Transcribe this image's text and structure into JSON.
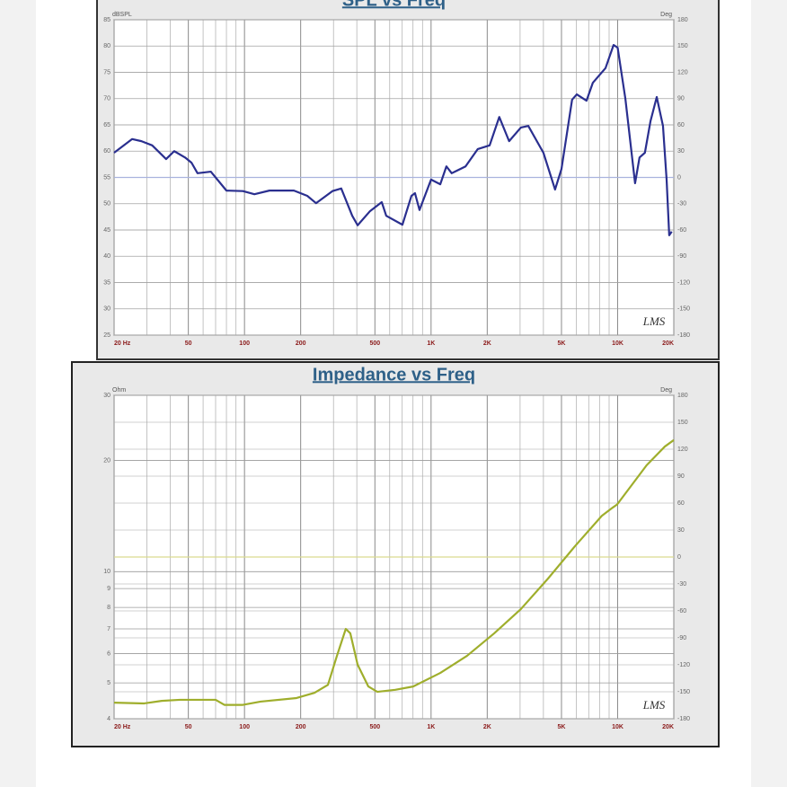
{
  "chart_data": [
    {
      "type": "line",
      "title": "SPL vs Freq",
      "y_label": "dBSPL",
      "y2_label": "Deg",
      "watermark": "LMS",
      "x_log": true,
      "y_log": false,
      "grid": true,
      "xlim": [
        20,
        20000
      ],
      "xticks": [
        {
          "value": 20,
          "label": "20 Hz"
        },
        50,
        100,
        200,
        500,
        {
          "value": 1000,
          "label": "1K"
        },
        {
          "value": 2000,
          "label": "2K"
        },
        {
          "value": 5000,
          "label": "5K"
        },
        {
          "value": 10000,
          "label": "10K"
        },
        {
          "value": 20000,
          "label": "20K"
        }
      ],
      "xminorticks": [
        30,
        40,
        60,
        70,
        80,
        90,
        300,
        400,
        600,
        700,
        800,
        900,
        3000,
        4000,
        6000,
        7000,
        8000,
        9000
      ],
      "ylim": [
        25,
        85
      ],
      "yticks": [
        25,
        30,
        35,
        40,
        45,
        50,
        55,
        60,
        65,
        70,
        75,
        80,
        85
      ],
      "y2lim": [
        -180,
        180
      ],
      "y2ticks": [
        -180,
        -150,
        -120,
        -90,
        -60,
        -30,
        0,
        30,
        60,
        90,
        120,
        150,
        180
      ],
      "series": [
        {
          "color": "#2a2f8f",
          "x": [
            20,
            25,
            28,
            32,
            38,
            42,
            48,
            52,
            56,
            66,
            80,
            98,
            113,
            136,
            184,
            217,
            242,
            296,
            330,
            378,
            404,
            471,
            544,
            575,
            702,
            785,
            820,
            867,
            1000,
            1120,
            1208,
            1290,
            1530,
            1780,
            2060,
            2320,
            2620,
            3030,
            3320,
            4000,
            4620,
            5000,
            5700,
            6040,
            6810,
            7360,
            8610,
            9510,
            10000,
            11000,
            12400,
            13100,
            14000,
            15000,
            16200,
            17500,
            18300,
            18900,
            19500
          ],
          "values": [
            59.7,
            62.3,
            61.9,
            61.1,
            58.5,
            60.0,
            58.8,
            57.8,
            55.8,
            56.1,
            52.5,
            52.4,
            51.8,
            52.5,
            52.5,
            51.5,
            50.1,
            52.4,
            52.9,
            47.7,
            45.9,
            48.6,
            50.3,
            47.7,
            46.0,
            51.5,
            52.0,
            48.8,
            54.6,
            53.7,
            57.1,
            55.8,
            57.1,
            60.4,
            61.1,
            66.5,
            61.9,
            64.5,
            64.8,
            59.7,
            52.7,
            56.6,
            69.8,
            70.8,
            69.6,
            73.0,
            75.8,
            80.2,
            79.7,
            70.0,
            53.9,
            58.8,
            59.7,
            65.7,
            70.3,
            64.8,
            54.6,
            44.0,
            44.7
          ]
        },
        {
          "color": "#a9b3de",
          "axis": "y2",
          "x": [
            20,
            20000
          ],
          "values": [
            0,
            0
          ]
        }
      ]
    },
    {
      "type": "line",
      "title": "Impedance vs Freq",
      "y_label": "Ohm",
      "y2_label": "Deg",
      "watermark": "LMS",
      "x_log": true,
      "y_log": true,
      "grid": true,
      "xlim": [
        20,
        20000
      ],
      "xticks": [
        {
          "value": 20,
          "label": "20 Hz"
        },
        50,
        100,
        200,
        500,
        {
          "value": 1000,
          "label": "1K"
        },
        {
          "value": 2000,
          "label": "2K"
        },
        {
          "value": 5000,
          "label": "5K"
        },
        {
          "value": 10000,
          "label": "10K"
        },
        {
          "value": 20000,
          "label": "20K"
        }
      ],
      "xminorticks": [
        30,
        40,
        60,
        70,
        80,
        90,
        300,
        400,
        600,
        700,
        800,
        900,
        3000,
        4000,
        6000,
        7000,
        8000,
        9000
      ],
      "ylim": [
        4,
        30
      ],
      "yticks": [
        4,
        5,
        6,
        7,
        8,
        9,
        10,
        20,
        30
      ],
      "y2lim": [
        -180,
        180
      ],
      "y2ticks": [
        -180,
        -150,
        -120,
        -90,
        -60,
        -30,
        0,
        30,
        60,
        90,
        120,
        150,
        180
      ],
      "series": [
        {
          "color": "#9fae2c",
          "x": [
            20,
            29,
            36,
            45,
            70,
            78,
            98,
            122,
            190,
            237,
            280,
            313,
            349,
            369,
            404,
            461,
            515,
            643,
            802,
            1120,
            1560,
            2180,
            3030,
            4230,
            5900,
            8230,
            9400,
            9940,
            14300,
            17900,
            20000
          ],
          "values": [
            4.42,
            4.4,
            4.47,
            4.5,
            4.5,
            4.36,
            4.36,
            4.45,
            4.55,
            4.7,
            4.94,
            5.92,
            7.0,
            6.81,
            5.6,
            4.89,
            4.73,
            4.79,
            4.89,
            5.32,
            5.92,
            6.81,
            7.92,
            9.57,
            11.71,
            14.16,
            14.9,
            15.2,
            19.4,
            21.8,
            22.7
          ]
        },
        {
          "color": "#d9d98f",
          "axis": "y2",
          "x": [
            20,
            20000
          ],
          "values": [
            0,
            0
          ]
        }
      ]
    }
  ]
}
